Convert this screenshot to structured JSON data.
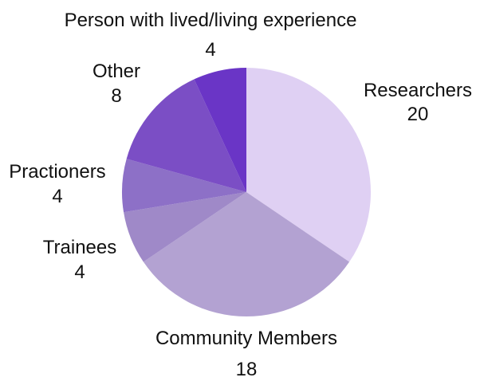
{
  "chart_data": {
    "type": "pie",
    "start_angle_deg": 0,
    "direction": "clockwise",
    "slices": [
      {
        "label": "Researchers",
        "value": 20,
        "color": "#dfd0f3"
      },
      {
        "label": "Community Members",
        "value": 18,
        "color": "#b3a2d2"
      },
      {
        "label": "Trainees",
        "value": 4,
        "color": "#9f89c8"
      },
      {
        "label": "Practioners",
        "value": 4,
        "color": "#8d70c7"
      },
      {
        "label": "Other",
        "value": 8,
        "color": "#7b4ec5"
      },
      {
        "label": "Person with lived/living experience",
        "value": 4,
        "color": "#6a35c6"
      }
    ]
  }
}
